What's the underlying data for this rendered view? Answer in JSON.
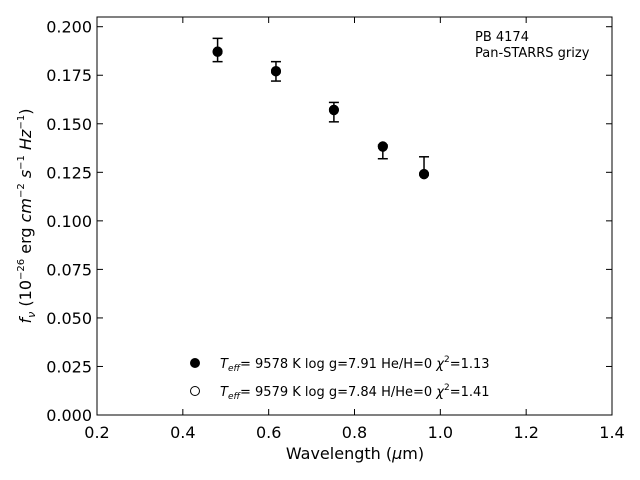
{
  "chart_data": {
    "type": "scatter",
    "title": "",
    "xlabel": "Wavelength (μm)",
    "ylabel": "f_ν (10^-26 erg cm^-2 s^-1 Hz^-1)",
    "xlim": [
      0.2,
      1.4
    ],
    "ylim": [
      0.0,
      0.205
    ],
    "x_ticks": [
      "0.2",
      "0.4",
      "0.6",
      "0.8",
      "1.0",
      "1.2",
      "1.4"
    ],
    "y_ticks": [
      "0.000",
      "0.025",
      "0.050",
      "0.075",
      "0.100",
      "0.125",
      "0.150",
      "0.175",
      "0.200"
    ],
    "grid": false,
    "annotation": [
      "PB 4174",
      "Pan-STARRS grizy"
    ],
    "series": [
      {
        "name": "T_eff= 9578 K log g=7.91 He/H=0 χ²=1.13",
        "marker": "filled-circle",
        "x": [
          0.481,
          0.617,
          0.752,
          0.866,
          0.962
        ],
        "y": [
          0.1872,
          0.177,
          0.1572,
          0.1382,
          0.124
        ]
      },
      {
        "name": "T_eff= 9579 K log g=7.84 H/He=0 χ²=1.41",
        "marker": "open-circle",
        "x": [
          0.481,
          0.617,
          0.752,
          0.866,
          0.962
        ],
        "y": [
          0.187,
          0.1772,
          0.157,
          0.1384,
          0.1242
        ]
      }
    ],
    "observed": {
      "x": [
        0.481,
        0.617,
        0.752,
        0.866,
        0.962
      ],
      "y": [
        0.188,
        0.177,
        0.156,
        0.136,
        0.124
      ],
      "err_low": [
        0.006,
        0.005,
        0.005,
        0.004,
        0.0
      ],
      "err_high": [
        0.006,
        0.005,
        0.005,
        0.003,
        0.009
      ]
    },
    "legend": [
      {
        "marker": "filled-circle",
        "teff_label": "T",
        "teff_sub": "eff",
        "text": "=  9578 K  log g=7.91  He/H=0  ",
        "chi_text": "χ",
        "chi_sup": "2",
        "chi_value": "=1.13"
      },
      {
        "marker": "open-circle",
        "teff_label": "T",
        "teff_sub": "eff",
        "text": "=  9579 K  log g=7.84  H/He=0  ",
        "chi_text": "χ",
        "chi_sup": "2",
        "chi_value": "=1.41"
      }
    ]
  }
}
